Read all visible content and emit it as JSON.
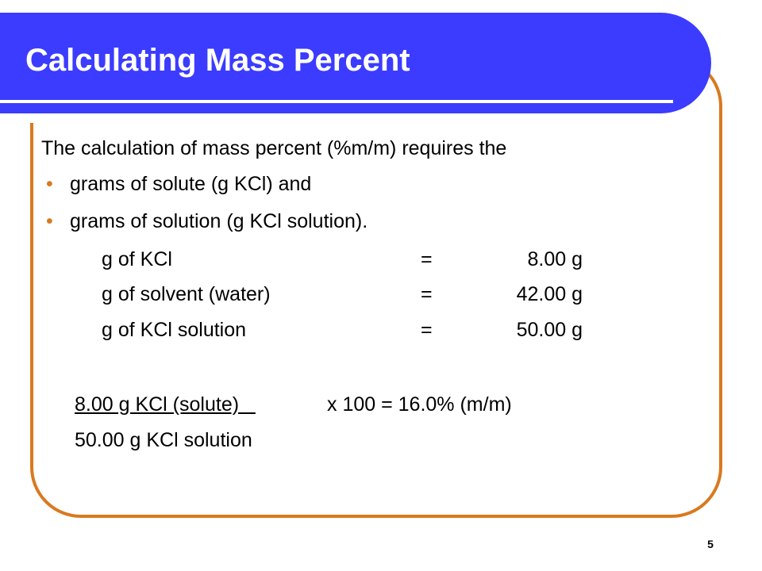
{
  "slide": {
    "title": "Calculating Mass Percent",
    "intro": "The calculation of mass percent (%m/m) requires the",
    "bullet_symbol": "•",
    "bullets": [
      "grams of solute (g KCl) and",
      "grams of solution (g KCl solution)."
    ],
    "rows": [
      {
        "label": "g of KCl",
        "eq": "=",
        "value": "8.00 g"
      },
      {
        "label": "g of solvent (water)",
        "eq": "=",
        "value": "42.00 g"
      },
      {
        "label": "g of KCl solution",
        "eq": "=",
        "value": "50.00 g"
      }
    ],
    "fraction": {
      "numerator": "8.00 g KCl (solute)   ",
      "operation": "x 100  =  16.0% (m/m)",
      "denominator": "50.00 g KCl solution"
    },
    "page_number": "5"
  },
  "colors": {
    "title_bar": "#3b3cff",
    "frame": "#d9791f",
    "bullet": "#d9791f"
  }
}
